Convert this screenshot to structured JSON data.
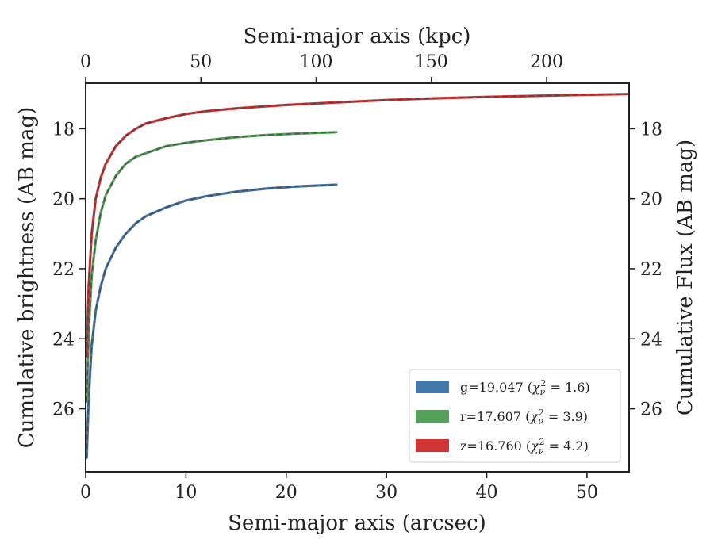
{
  "chart_data": {
    "type": "line",
    "xlabel": "Semi-major axis (arcsec)",
    "ylabel": "Cumulative brightness (AB mag)",
    "ylabel_right": "Cumulative Flux (AB mag)",
    "xlabel_top": "Semi-major axis (kpc)",
    "xlim": [
      0,
      54.2
    ],
    "ylim": [
      27.8,
      16.7
    ],
    "y_inverted": true,
    "xticks": [
      0,
      10,
      20,
      30,
      40,
      50
    ],
    "yticks": [
      18,
      20,
      22,
      24,
      26
    ],
    "top_ticks": [
      0,
      50,
      100,
      150,
      200
    ],
    "kpc_per_arcsec": 4.35,
    "grid": false,
    "legend_position": "lower-right",
    "series": [
      {
        "name_prefix": "g=19.047 (",
        "name_chi": "2 = 1.6)",
        "color": "#4477aa",
        "x": [
          0.1,
          0.3,
          0.6,
          1,
          1.5,
          2,
          3,
          4,
          5,
          6,
          8,
          10,
          12,
          15,
          18,
          21,
          25
        ],
        "y": [
          27.4,
          25.7,
          24.2,
          23.2,
          22.5,
          22.0,
          21.4,
          21.0,
          20.7,
          20.5,
          20.25,
          20.05,
          19.93,
          19.8,
          19.71,
          19.65,
          19.6
        ]
      },
      {
        "name_prefix": "r=17.607 (",
        "name_chi": "2 = 3.9)",
        "color": "#55a15a",
        "x": [
          0.1,
          0.3,
          0.6,
          1,
          1.5,
          2,
          3,
          4,
          5,
          6,
          8,
          10,
          12,
          15,
          18,
          21,
          25
        ],
        "y": [
          25.8,
          23.8,
          22.2,
          21.2,
          20.4,
          19.9,
          19.35,
          19.0,
          18.8,
          18.7,
          18.5,
          18.4,
          18.33,
          18.24,
          18.18,
          18.14,
          18.1
        ]
      },
      {
        "name_prefix": "z=16.760 (",
        "name_chi": "2 = 4.2)",
        "color": "#d03434",
        "x": [
          0.1,
          0.3,
          0.6,
          1,
          1.5,
          2,
          3,
          4,
          5,
          6,
          8,
          10,
          12,
          15,
          20,
          25,
          30,
          35,
          40,
          45,
          50,
          54
        ],
        "y": [
          24.5,
          22.5,
          21.0,
          20.0,
          19.4,
          19.0,
          18.5,
          18.2,
          18.0,
          17.85,
          17.7,
          17.58,
          17.5,
          17.42,
          17.32,
          17.25,
          17.18,
          17.13,
          17.09,
          17.06,
          17.03,
          17.01
        ]
      }
    ]
  }
}
